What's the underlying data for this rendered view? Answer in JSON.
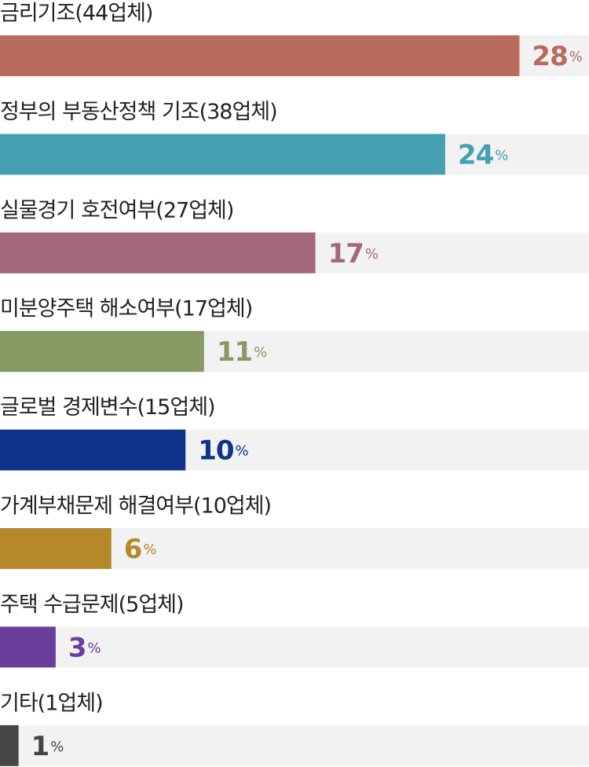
{
  "chart_data": {
    "type": "bar",
    "orientation": "horizontal",
    "categories": [
      "금리기조(44업체)",
      "정부의 부동산정책 기조(38업체)",
      "실물경기 호전여부(27업체)",
      "미분양주택 해소여부(17업체)",
      "글로벌 경제변수(15업체)",
      "가계부채문제 해결여부(10업체)",
      "주택 수급문제(5업체)",
      "기타(1업체)"
    ],
    "values": [
      28,
      24,
      17,
      11,
      10,
      6,
      3,
      1
    ],
    "value_labels": [
      "28%",
      "24%",
      "17%",
      "11%",
      "10%",
      "6%",
      "3%",
      "1%"
    ],
    "colors": [
      "#b96b5d",
      "#45a0b1",
      "#a4687e",
      "#869a62",
      "#0f328a",
      "#b5892a",
      "#6a3e9c",
      "#454545"
    ],
    "xlim": [
      0,
      31.75
    ]
  }
}
